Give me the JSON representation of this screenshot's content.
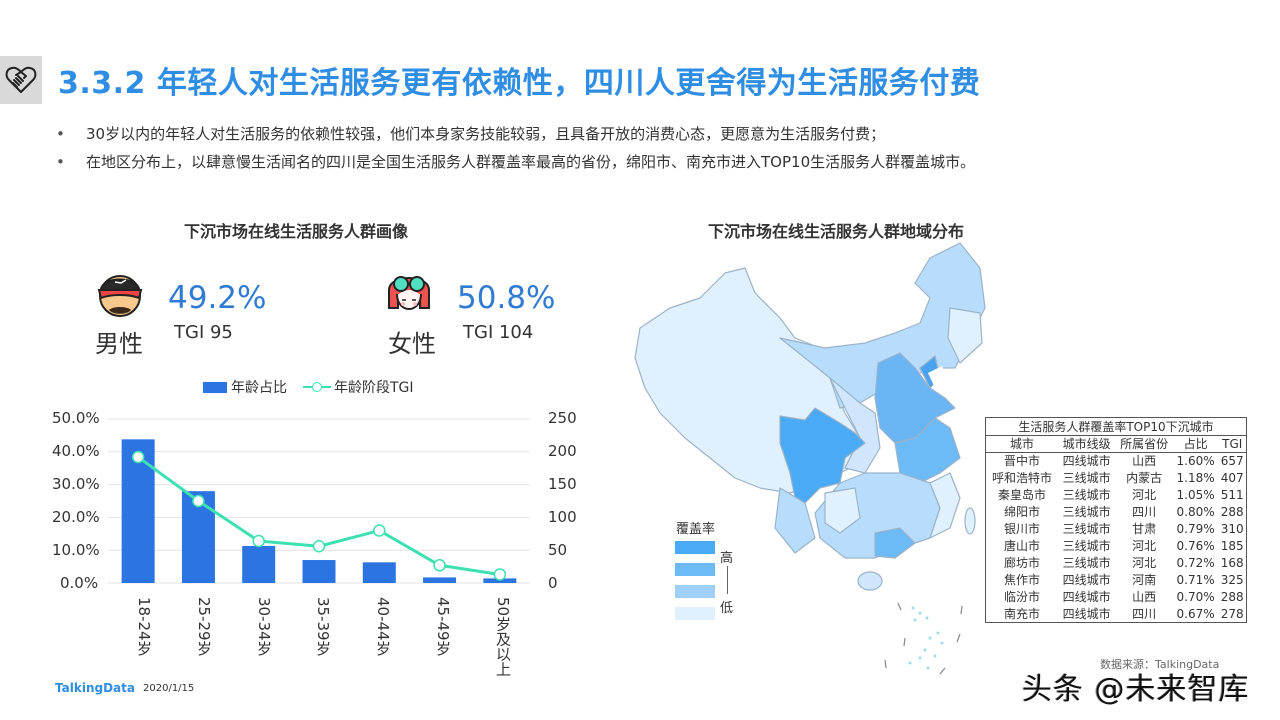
{
  "header": {
    "icon": "handshake-heart-icon",
    "title": "3.3.2 年轻人对生活服务更有依赖性，四川人更舍得为生活服务付费"
  },
  "bullets": [
    "30岁以内的年轻人对生活服务的依赖性较强，他们本身家务技能较弱，且具备开放的消费心态，更愿意为生活服务付费；",
    "在地区分布上，以肆意慢生活闻名的四川是全国生活服务人群覆盖率最高的省份，绵阳市、南充市进入TOP10生活服务人群覆盖城市。"
  ],
  "bullet_marker": "•",
  "left_panel": {
    "title": "下沉市场在线生活服务人群画像",
    "male": {
      "icon": "male-avatar-icon",
      "label": "男性",
      "percent": "49.2%",
      "tgi": "TGI 95"
    },
    "female": {
      "icon": "female-avatar-icon",
      "label": "女性",
      "percent": "50.8%",
      "tgi": "TGI 104"
    },
    "legend": {
      "bar": "年龄占比",
      "line": "年龄阶段TGI"
    }
  },
  "chart_data": {
    "type": "bar",
    "title": "下沉市场在线生活服务人群画像",
    "categories": [
      "18-24岁",
      "25-29岁",
      "30-34岁",
      "35-39岁",
      "40-44岁",
      "45-49岁",
      "50岁及以上"
    ],
    "series": [
      {
        "name": "年龄占比",
        "type": "bar",
        "axis": "left",
        "color": "#2b74e2",
        "values": [
          43.8,
          28.0,
          11.3,
          7.0,
          6.3,
          1.7,
          1.4
        ]
      },
      {
        "name": "年龄阶段TGI",
        "type": "line",
        "axis": "right",
        "color": "#3ee0b3",
        "values": [
          192,
          125,
          64,
          56,
          80,
          27,
          13
        ]
      }
    ],
    "y_left": {
      "ticks": [
        "0.0%",
        "10.0%",
        "20.0%",
        "30.0%",
        "40.0%",
        "50.0%"
      ],
      "range": [
        0,
        50
      ]
    },
    "y_right": {
      "ticks": [
        "0",
        "50",
        "100",
        "150",
        "200",
        "250"
      ],
      "range": [
        0,
        250
      ]
    },
    "xlabel": "",
    "ylabel": "",
    "grid": true,
    "legend_position": "top"
  },
  "right_panel": {
    "title": "下沉市场在线生活服务人群地域分布",
    "map_legend": {
      "title": "覆盖率",
      "high": "高",
      "low": "低",
      "colors": [
        "#4aaaf6",
        "#6cbaf6",
        "#9ed0f9",
        "#e1f0fd"
      ]
    },
    "table": {
      "title": "生活服务人群覆盖率TOP10下沉城市",
      "headers": [
        "城市",
        "城市线级",
        "所属省份",
        "占比",
        "TGI"
      ],
      "rows": [
        [
          "晋中市",
          "四线城市",
          "山西",
          "1.60%",
          "657"
        ],
        [
          "呼和浩特市",
          "三线城市",
          "内蒙古",
          "1.18%",
          "407"
        ],
        [
          "秦皇岛市",
          "三线城市",
          "河北",
          "1.05%",
          "511"
        ],
        [
          "绵阳市",
          "三线城市",
          "四川",
          "0.80%",
          "288"
        ],
        [
          "银川市",
          "三线城市",
          "甘肃",
          "0.79%",
          "310"
        ],
        [
          "唐山市",
          "三线城市",
          "河北",
          "0.76%",
          "185"
        ],
        [
          "廊坊市",
          "三线城市",
          "河北",
          "0.72%",
          "168"
        ],
        [
          "焦作市",
          "四线城市",
          "河南",
          "0.71%",
          "325"
        ],
        [
          "临汾市",
          "四线城市",
          "山西",
          "0.70%",
          "288"
        ],
        [
          "南充市",
          "四线城市",
          "四川",
          "0.67%",
          "278"
        ]
      ]
    }
  },
  "footer": {
    "logo": "TalkingData",
    "date": "2020/1/15",
    "source": "数据来源：TalkingData",
    "watermark": "头条 @未来智库"
  },
  "colors": {
    "title": "#2f8de4",
    "percent": "#2f7bd4",
    "bar": "#2b74e2",
    "line": "#3ee0b3"
  }
}
